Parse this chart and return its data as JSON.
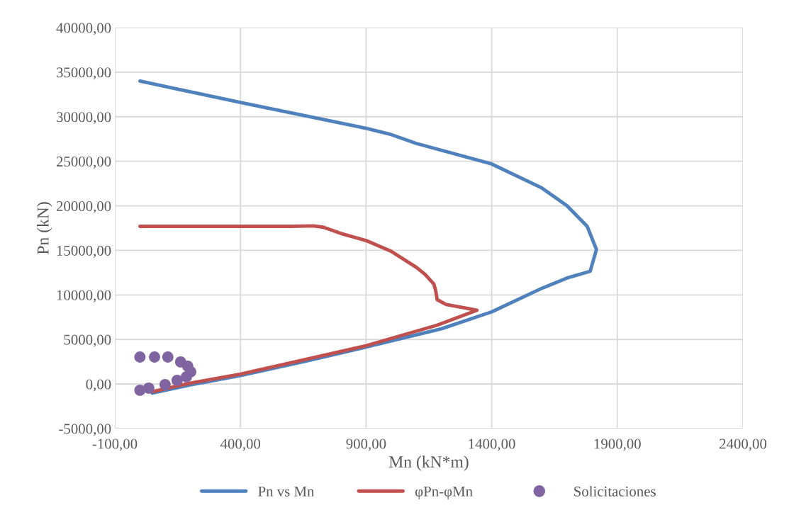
{
  "chart_data": {
    "type": "line",
    "xlabel": "Mn (kN*m)",
    "ylabel": "Pn (kN)",
    "xlim": [
      -100,
      2400
    ],
    "xticks": [
      {
        "value": -100,
        "label": "-100,00"
      },
      {
        "value": 400,
        "label": "400,00"
      },
      {
        "value": 900,
        "label": "900,00"
      },
      {
        "value": 1400,
        "label": "1400,00"
      },
      {
        "value": 1900,
        "label": "1900,00"
      },
      {
        "value": 2400,
        "label": "2400,00"
      }
    ],
    "ylim": [
      -5000,
      40000
    ],
    "yticks": [
      {
        "value": -5000,
        "label": "-5000,00"
      },
      {
        "value": 0,
        "label": "0,00"
      },
      {
        "value": 5000,
        "label": "5000,00"
      },
      {
        "value": 10000,
        "label": "10000,00"
      },
      {
        "value": 15000,
        "label": "15000,00"
      },
      {
        "value": 20000,
        "label": "20000,00"
      },
      {
        "value": 25000,
        "label": "25000,00"
      },
      {
        "value": 30000,
        "label": "30000,00"
      },
      {
        "value": 35000,
        "label": "35000,00"
      },
      {
        "value": 40000,
        "label": "40000,00"
      }
    ],
    "grid": true,
    "legend": "bottom",
    "series": [
      {
        "name": "Pn vs Mn",
        "color": "#4f81bd",
        "x": [
          0,
          400,
          900,
          1000,
          1100,
          1400,
          1600,
          1700,
          1780,
          1817,
          1792,
          1700,
          1600,
          1400,
          1200,
          900,
          650,
          400,
          200,
          49
        ],
        "values": [
          34000,
          31600,
          28700,
          28000,
          27000,
          24700,
          22000,
          20000,
          17700,
          15100,
          12650,
          11900,
          10750,
          8100,
          6200,
          4150,
          2500,
          960,
          -100,
          -1020
        ]
      },
      {
        "name": "φPn-φMn",
        "color": "#c0504d",
        "x": [
          0,
          300,
          600,
          690,
          730,
          800,
          900,
          1000,
          1100,
          1135,
          1170,
          1177,
          1183,
          1219,
          1300,
          1341,
          1183,
          900,
          650,
          400,
          200,
          49
        ],
        "values": [
          17700,
          17700,
          17700,
          17750,
          17600,
          16900,
          16100,
          14900,
          13100,
          12300,
          11200,
          10500,
          9470,
          8920,
          8500,
          8280,
          6610,
          4300,
          2700,
          1120,
          100,
          -860
        ]
      },
      {
        "name": "Solicitaciones",
        "type": "scatter",
        "color": "#8064a2",
        "x": [
          0,
          58,
          111,
          162,
          190,
          202,
          185,
          148,
          100,
          35,
          0
        ],
        "values": [
          3030,
          3030,
          3030,
          2480,
          2000,
          1370,
          810,
          410,
          -60,
          -460,
          -700
        ]
      }
    ]
  }
}
